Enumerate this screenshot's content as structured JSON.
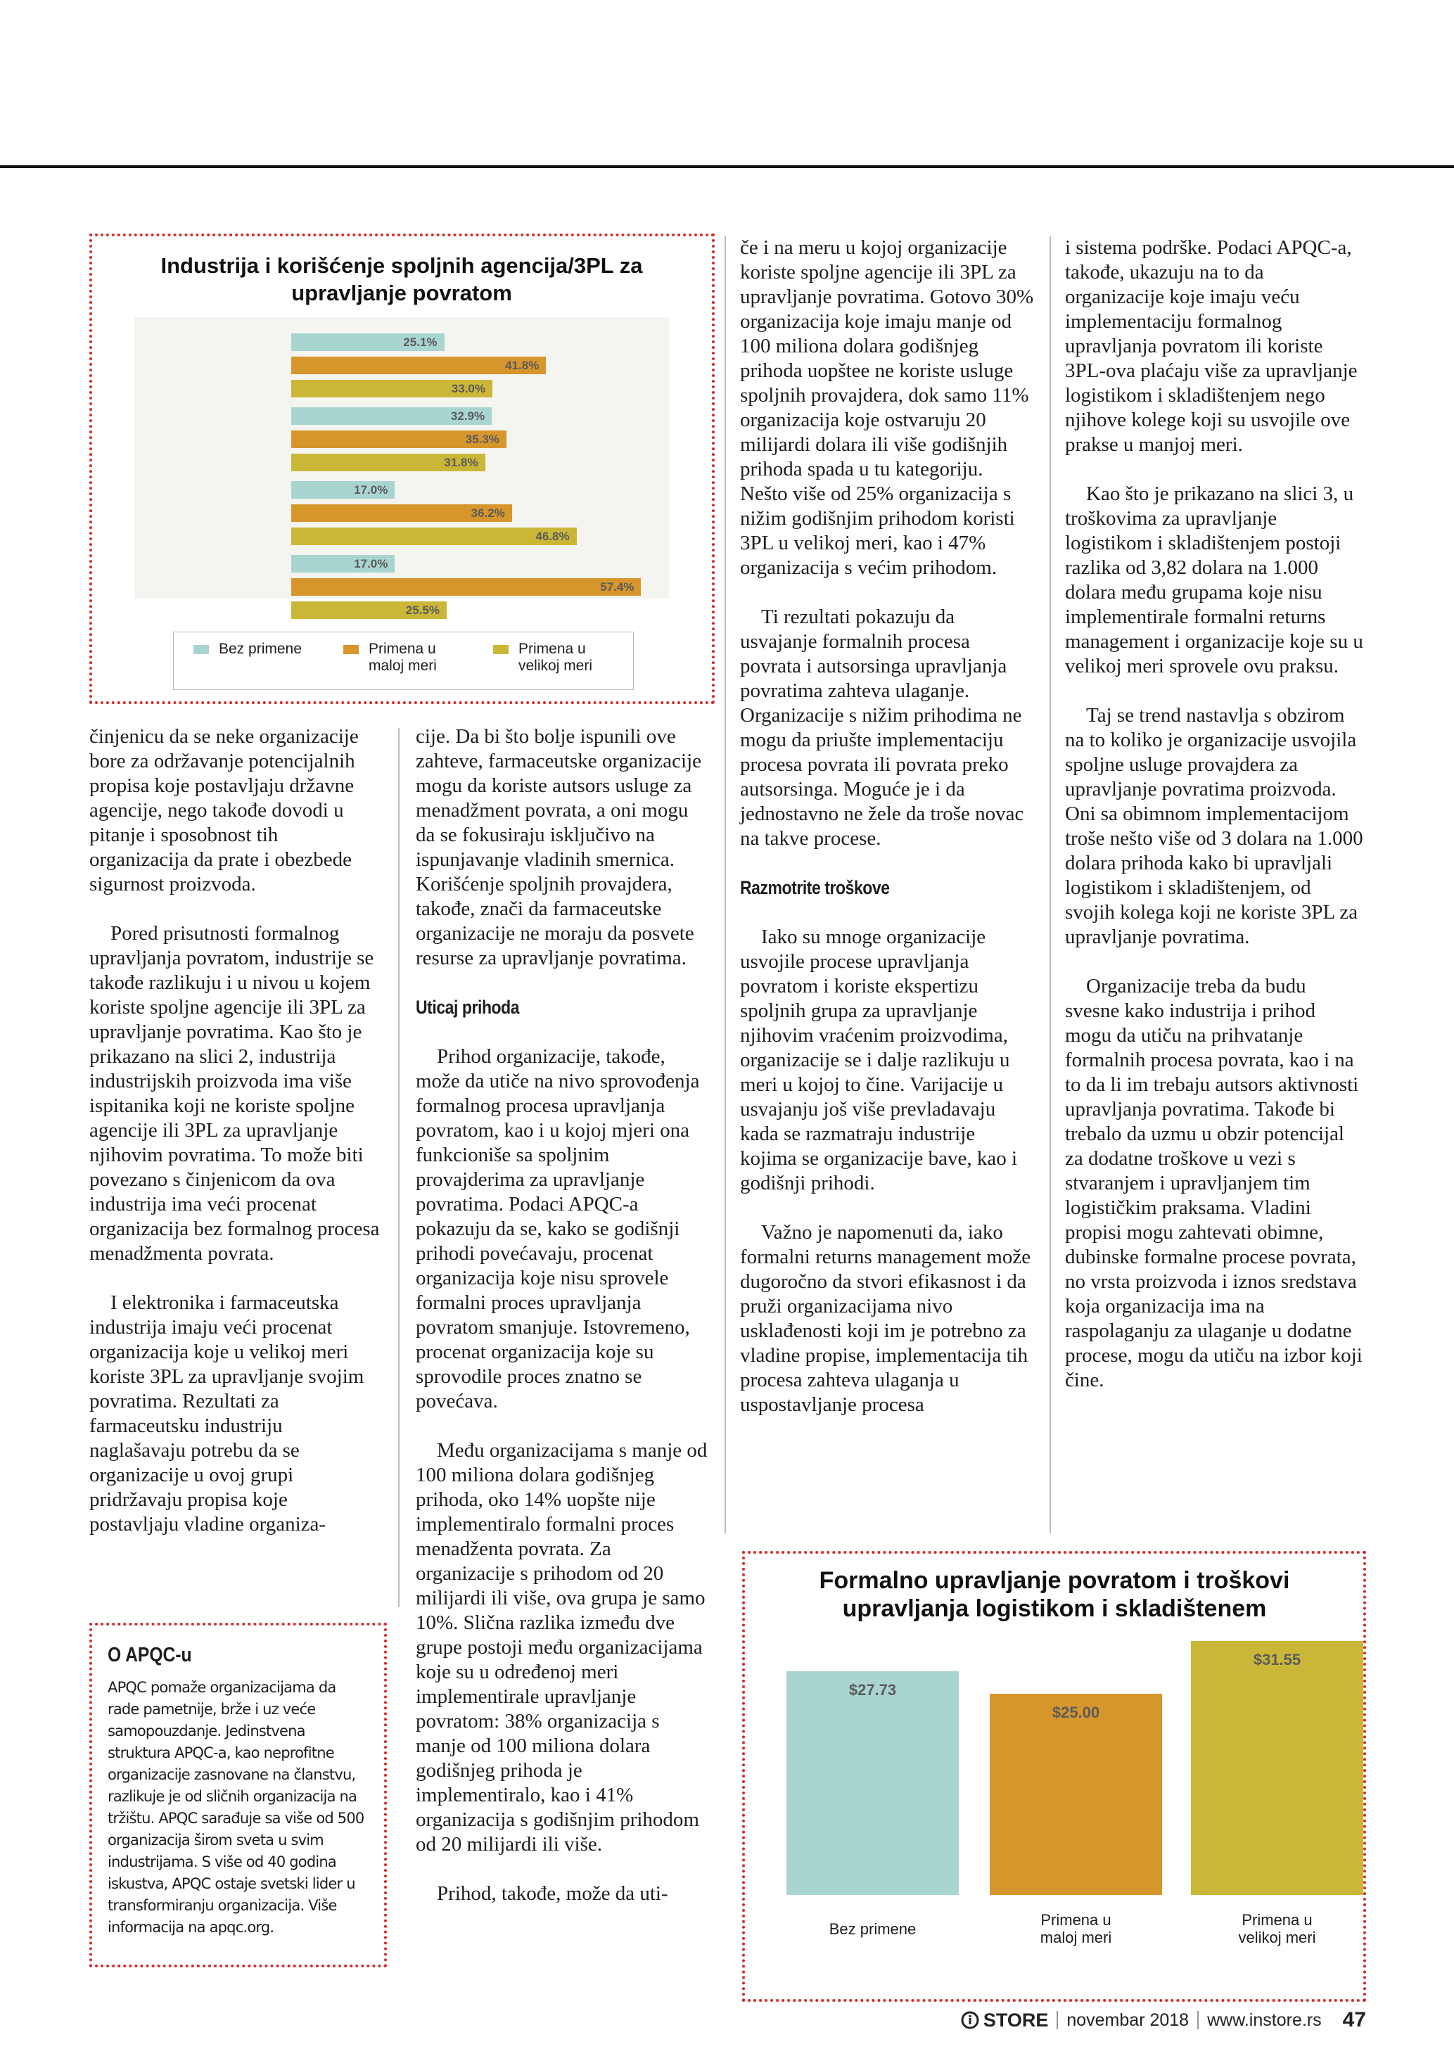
{
  "chart_data": [
    {
      "type": "hbar",
      "title": "Industrija i korišćenje spoljnih agencija/3PL za upravljanje povratom",
      "categories": [
        null,
        null,
        null,
        null
      ],
      "series": [
        {
          "name": "Bez primene",
          "color": "#a9d5d1",
          "values": [
            25.1,
            32.9,
            17.0,
            17.0
          ],
          "value_labels": [
            "25.1%",
            "32.9%",
            "17.0%",
            "17.0%"
          ]
        },
        {
          "name": "Primena u maloj meri",
          "color": "#d6962b",
          "values": [
            41.8,
            35.3,
            36.2,
            57.4
          ],
          "value_labels": [
            "41.8%",
            "35.3%",
            "36.2%",
            "57.4%"
          ]
        },
        {
          "name": "Primena u velikoj meri",
          "color": "#cbb737",
          "values": [
            33.0,
            31.8,
            46.8,
            25.5
          ],
          "value_labels": [
            "33.0%",
            "31.8%",
            "46.8%",
            "25.5%"
          ]
        }
      ],
      "xlim": [
        0,
        60
      ],
      "legend": "bottom"
    },
    {
      "type": "bar",
      "title": "Formalno upravljanje povratom i troškovi upravljanja logistikom i skladištenem",
      "categories": [
        "Bez primene",
        "Primena u maloj meri",
        "Primena u velikoj meri"
      ],
      "values": [
        27.73,
        25.0,
        31.55
      ],
      "value_labels": [
        "$27.73",
        "$25.00",
        "$31.55"
      ],
      "colors": [
        "#a9d5d1",
        "#d6962b",
        "#cbb737"
      ],
      "ylim": [
        0,
        35
      ]
    }
  ],
  "columns": [
    {
      "blocks": [
        {
          "paragraph": "činjenicu da se neke organizacije bore za održavanje potencijalnih propisa koje postavljaju državne agencije, nego takođe dovodi u pitanje i sposobnost tih organizacija da prate i obezbede sigurnost proizvoda."
        },
        {
          "paragraph": "Pored prisutnosti formalnog upravljanja povratom, industrije se takođe razlikuju i u nivou u kojem koriste spoljne agencije ili 3PL za upravljanje povratima. Kao što je prikazano na slici 2, industrija industrijskih proizvoda ima više ispitanika koji ne koriste spoljne agencije ili 3PL za upravljanje njihovim povratima. To može biti povezano s činjenicom da ova industrija ima veći procenat organizacija bez formalnog procesa menadžmenta povrata."
        },
        {
          "paragraph": "I elektronika i farmaceutska industrija imaju veći procenat organizacija koje u velikoj meri koriste 3PL za upravljanje svojim povratima. Rezultati za farmaceutsku industriju naglašavaju potrebu da se organizacije u ovoj grupi pridržavaju propisa koje postavljaju vladine organiza-"
        }
      ]
    },
    {
      "blocks": [
        {
          "paragraph": "cije. Da bi što bolje ispunili ove zahteve, farmaceutske organizacije mogu da koriste autsors usluge za menadžment povrata, a oni mogu da se fokusiraju isključivo na ispunjavanje vladinih smernica. Korišćenje spoljnih provajdera, takođe, znači da farmaceutske organizacije ne moraju da posvete resurse za upravljanje povratima."
        },
        {
          "heading": "Uticaj prihoda"
        },
        {
          "paragraph": "Prihod organizacije, takođe, može da utiče na nivo sprovođenja formalnog procesa upravljanja povratom, kao i u kojoj mjeri ona funkcioniše sa spoljnim provajderima za upravljanje povratima. Podaci APQC-a pokazuju da se, kako se godišnji prihodi povećavaju, procenat organizacija koje nisu sprovele formalni proces upravljanja povratom smanjuje. Istovremeno, procenat organizacija koje su sprovodile proces znatno se povećava."
        },
        {
          "paragraph": "Među organizacijama s manje od 100 miliona dolara godišnjeg prihoda, oko 14% uopšte nije implementiralo formalni proces menadženta povrata. Za organizacije s prihodom od 20 milijardi ili više, ova grupa je samo 10%. Slična razlika između dve grupe postoji među organizacijama koje su u određenoj meri implementirale upravljanje povratom: 38% organizacija s manje od 100 miliona dolara godišnjeg prihoda je implementiralo, kao i 41% organizacija s godišnjim prihodom od 20 milijardi ili više."
        },
        {
          "paragraph": "Prihod, takođe, može da uti-"
        }
      ]
    },
    {
      "blocks": [
        {
          "paragraph": "če i na meru u kojoj organizacije koriste spoljne agencije ili 3PL za upravljanje povratima. Gotovo 30% organizacija koje imaju manje od 100 miliona dolara godišnjeg prihoda uopštee ne koriste usluge spoljnih provajdera, dok samo 11% organizacija koje ostvaruju 20 milijardi dolara ili više godišnjih prihoda spada u tu kategoriju. Nešto više od 25% organizacija s nižim godišnjim prihodom koristi 3PL u velikoj meri, kao i 47% organizacija s većim prihodom."
        },
        {
          "paragraph": "Ti rezultati pokazuju da usvajanje formalnih procesa povrata i autsorsinga upravljanja povratima zahteva ulaganje. Organizacije s nižim prihodima ne mogu da priušte implementaciju procesa povrata ili povrata preko autsorsinga. Moguće je i da jednostavno ne žele da troše novac na takve procese."
        },
        {
          "heading": "Razmotrite troškove"
        },
        {
          "paragraph": "Iako su mnoge organizacije usvojile procese upravljanja povratom i koriste ekspertizu spoljnih grupa za upravljanje njihovim vraćenim proizvodima, organizacije se i dalje razlikuju u meri u kojoj to čine. Varijacije u usvajanju još više prevladavaju kada se razmatraju industrije kojima se organizacije bave, kao i godišnji prihodi."
        },
        {
          "paragraph": "Važno je napomenuti da, iako formalni returns management može dugoročno da stvori efikasnost i da pruži organizacijama nivo usklađenosti koji im je potrebno za vladine propise, implementacija tih procesa zahteva ulaganja u uspostavljanje procesa"
        }
      ]
    },
    {
      "blocks": [
        {
          "paragraph": "i sistema podrške. Podaci APQC-a, takođe, ukazuju na to da organizacije koje imaju veću implementaciju formalnog upravljanja povratom ili koriste 3PL-ova plaćaju više za upravljanje logistikom i skladištenjem nego njihove kolege koji su usvojile ove prakse u manjoj meri."
        },
        {
          "paragraph": "Kao što je prikazano na slici 3, u troškovima za upravljanje logistikom i skladištenjem postoji razlika od 3,82 dolara na 1.000 dolara među grupama koje nisu implementirale formalni returns management i organizacije koje su u velikoj meri sprovele ovu praksu."
        },
        {
          "paragraph": "Taj se trend nastavlja s obzirom na to koliko je organizacije usvojila spoljne usluge provajdera za upravljanje povratima proizvoda. Oni sa obimnom implementacijom troše nešto više od 3 dolara na 1.000 dolara prihoda kako bi upravljali logistikom i skladištenjem, od svojih kolega koji ne koriste 3PL za upravljanje povratima."
        },
        {
          "paragraph": "Organizacije treba da budu svesne kako industrija i prihod mogu da utiču na prihvatanje formalnih procesa povrata, kao i na to da li im trebaju autsors aktivnosti upravljanja povratima. Takođe bi trebalo da uzmu u obzir potencijal za dodatne troškove u vezi s stvaranjem i upravljanjem tim logističkim praksama. Vladini propisi mogu zahtevati obimne, dubinske formalne procese povrata, no vrsta proizvoda i iznos sredstava koja organizacija ima na raspolaganju za ulaganje u dodatne procese, mogu da utiču na izbor koji čine."
        }
      ]
    }
  ],
  "sidebar": {
    "title": "O APQC-u",
    "text": "APQC pomaže organizacijama da rade pametnije, brže i uz veće samopouzdanje. Jedinstvena struktura APQC-a, kao neprofitne organizacije zasnovane na članstvu, razlikuje je od sličnih organizacija na tržištu. APQC sarađuje sa više od 500 organizacija širom sveta u svim industrijama. S više od 40 godina iskustva, APQC ostaje svetski lider u transformiranju organizacija. Više informacija na apqc.org."
  },
  "footer": {
    "brand": "STORE",
    "issue": "novembar 2018",
    "url": "www.instore.rs",
    "page": "47"
  }
}
